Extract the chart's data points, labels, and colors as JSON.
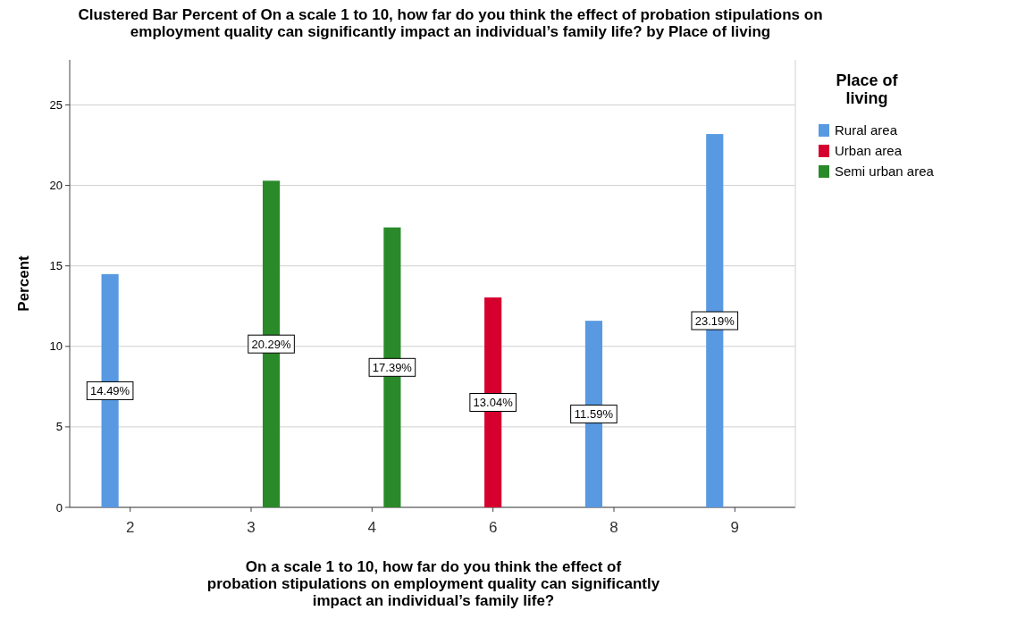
{
  "chart_data": {
    "type": "bar",
    "title": "Clustered Bar Percent of On a scale 1 to 10, how far do you think the effect of probation stipulations on employment quality can significantly impact an individual’s family life? by Place of living",
    "xlabel": "On a scale 1 to 10, how far do you think the effect of probation stipulations on employment quality can significantly impact an individual’s family life?",
    "ylabel": "Percent",
    "legend_title": "Place of living",
    "categories": [
      "2",
      "3",
      "4",
      "6",
      "8",
      "9"
    ],
    "series": [
      {
        "name": "Rural area",
        "color": "#5899e2",
        "values": [
          14.49,
          null,
          null,
          null,
          11.59,
          23.19
        ],
        "value_labels": [
          "14.49%",
          null,
          null,
          null,
          "11.59%",
          "23.19%"
        ]
      },
      {
        "name": "Urban area",
        "color": "#d6002f",
        "values": [
          null,
          null,
          null,
          13.04,
          null,
          null
        ],
        "value_labels": [
          null,
          null,
          null,
          "13.04%",
          null,
          null
        ]
      },
      {
        "name": "Semi urban area",
        "color": "#2a8a2a",
        "values": [
          null,
          20.29,
          17.39,
          null,
          null,
          null
        ],
        "value_labels": [
          null,
          "20.29%",
          "17.39%",
          null,
          null,
          null
        ]
      }
    ],
    "ylim": [
      0,
      27.8
    ],
    "yticks": [
      0,
      5,
      10,
      15,
      20,
      25
    ],
    "grid": "y",
    "legend": "right"
  }
}
